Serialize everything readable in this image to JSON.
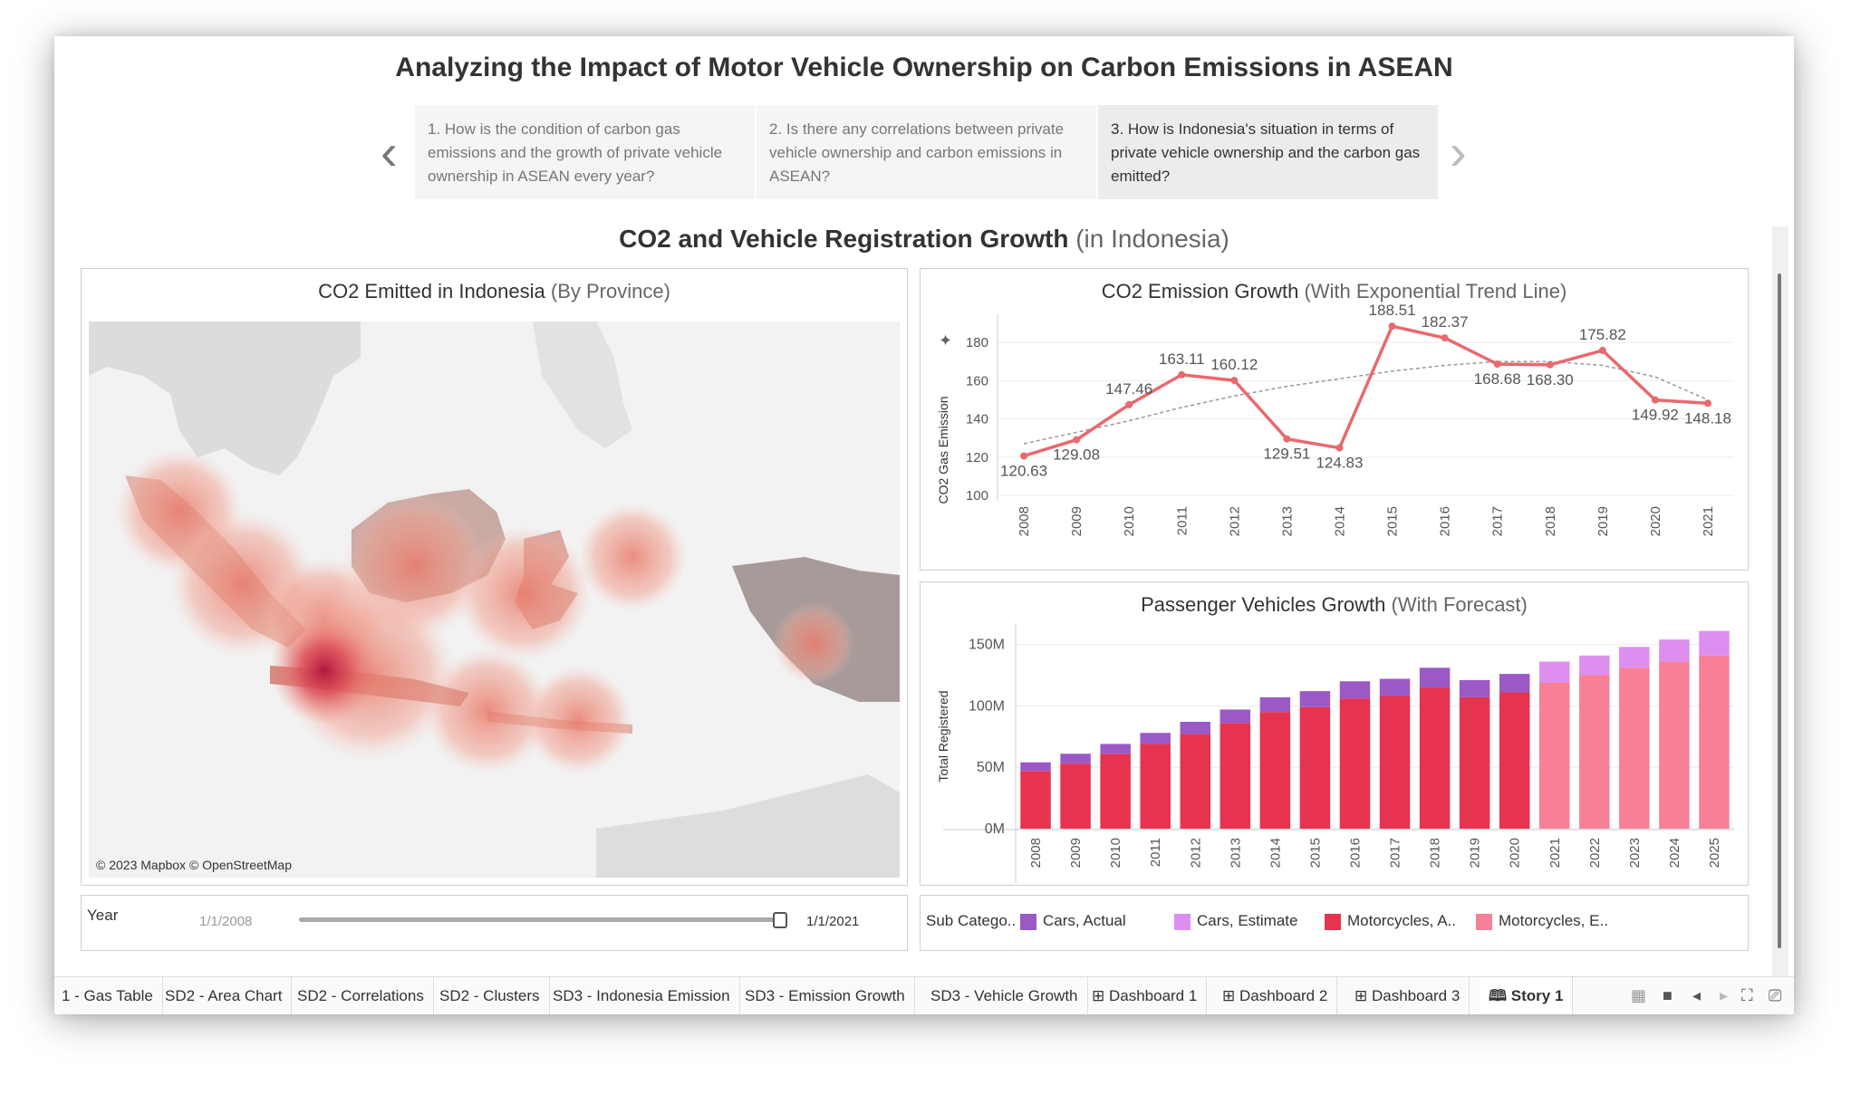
{
  "story": {
    "title": "Analyzing the Impact of Motor Vehicle Ownership on Carbon Emissions in ASEAN",
    "points": [
      {
        "label": "1. How is the condition of carbon gas emissions and the growth of private vehicle ownership in ASEAN every year?"
      },
      {
        "label": "2. Is there any correlations between private vehicle ownership and carbon emissions in ASEAN?"
      },
      {
        "label": "3. How is Indonesia's situation in terms of private vehicle ownership and the carbon gas emitted?"
      }
    ]
  },
  "dashboard": {
    "title_main": "CO2 and Vehicle Registration Growth",
    "title_sub": "(in Indonesia)"
  },
  "map": {
    "title_main": "CO2 Emitted in Indonesia",
    "title_sub": "(By Province)",
    "attribution": "© 2023 Mapbox © OpenStreetMap"
  },
  "year_filter": {
    "label": "Year",
    "start": "1/1/2008",
    "end": "1/1/2021",
    "fraction": 1.0
  },
  "legend": {
    "title": "Sub Catego..",
    "items": [
      {
        "label": "Cars, Actual",
        "color": "#9b59c6"
      },
      {
        "label": "Cars, Estimate",
        "color": "#dd8ff0"
      },
      {
        "label": "Motorcycles, A..",
        "color": "#e6334f"
      },
      {
        "label": "Motorcycles, E..",
        "color": "#f78097"
      }
    ]
  },
  "chart_data": [
    {
      "type": "line",
      "title_main": "CO2 Emission Growth",
      "title_sub": "(With Exponential Trend Line)",
      "ylabel": "CO2 Gas Emission",
      "x": [
        "2008",
        "2009",
        "2010",
        "2011",
        "2012",
        "2013",
        "2014",
        "2015",
        "2016",
        "2017",
        "2018",
        "2019",
        "2020",
        "2021"
      ],
      "values": [
        120.63,
        129.08,
        147.46,
        163.11,
        160.12,
        129.51,
        124.83,
        188.51,
        182.37,
        168.68,
        168.3,
        175.82,
        149.92,
        148.18
      ],
      "data_labels": [
        "120.63",
        "129.08",
        "147.46",
        "163.11",
        "160.12",
        "129.51",
        "124.83",
        "188.51",
        "182.37",
        "168.68",
        "168.30",
        "175.82",
        "149.92",
        "148.18"
      ],
      "trend": [
        127,
        133,
        139,
        146,
        152,
        157,
        161,
        165,
        168,
        170,
        170,
        168,
        162,
        150
      ],
      "yticks": [
        "100",
        "120",
        "140",
        "160",
        "180"
      ],
      "ylim": [
        100,
        190
      ],
      "line_color": "#e8696e",
      "trend_color": "#999999"
    },
    {
      "type": "bar",
      "stacked": true,
      "title_main": "Passenger Vehicles Growth",
      "title_sub": "(With Forecast)",
      "ylabel": "Total Registered",
      "categories": [
        "2008",
        "2009",
        "2010",
        "2011",
        "2012",
        "2013",
        "2014",
        "2015",
        "2016",
        "2017",
        "2018",
        "2019",
        "2020",
        "2021",
        "2022",
        "2023",
        "2024",
        "2025"
      ],
      "series": [
        {
          "name": "Motorcycles, A..",
          "color": "#e6334f",
          "values": [
            47,
            53,
            61,
            69,
            77,
            86,
            95,
            99,
            106,
            108,
            115,
            107,
            111,
            null,
            null,
            null,
            null,
            null
          ]
        },
        {
          "name": "Motorcycles, E..",
          "color": "#f78097",
          "values": [
            null,
            null,
            null,
            null,
            null,
            null,
            null,
            null,
            null,
            null,
            null,
            null,
            null,
            119,
            125,
            131,
            136,
            141
          ]
        },
        {
          "name": "Cars, Actual",
          "color": "#9b59c6",
          "values": [
            7,
            8,
            8,
            9,
            10,
            11,
            12,
            13,
            14,
            14,
            16,
            14,
            15,
            null,
            null,
            null,
            null,
            null
          ]
        },
        {
          "name": "Cars, Estimate",
          "color": "#dd8ff0",
          "values": [
            null,
            null,
            null,
            null,
            null,
            null,
            null,
            null,
            null,
            null,
            null,
            null,
            null,
            17,
            16,
            17,
            18,
            20
          ]
        }
      ],
      "yticks": [
        "0M",
        "50M",
        "100M",
        "150M"
      ],
      "ylim": [
        0,
        160
      ]
    }
  ],
  "tabs": [
    {
      "label": "1 - Gas Table"
    },
    {
      "label": "SD2 - Area Chart"
    },
    {
      "label": "SD2 - Correlations"
    },
    {
      "label": "SD2 - Clusters"
    },
    {
      "label": "SD3 - Indonesia Emission"
    },
    {
      "label": "SD3 - Emission Growth"
    },
    {
      "label": "SD3 - Vehicle Growth"
    },
    {
      "label": "Dashboard 1"
    },
    {
      "label": "Dashboard 2"
    },
    {
      "label": "Dashboard 3"
    },
    {
      "label": "Story 1"
    }
  ],
  "icons": {
    "prev": "chevron-left-icon",
    "next": "chevron-right-icon",
    "pin": "pin-icon",
    "grid": "grid-view-icon",
    "dashboard": "dashboard-tab-icon",
    "story": "story-tab-icon"
  }
}
